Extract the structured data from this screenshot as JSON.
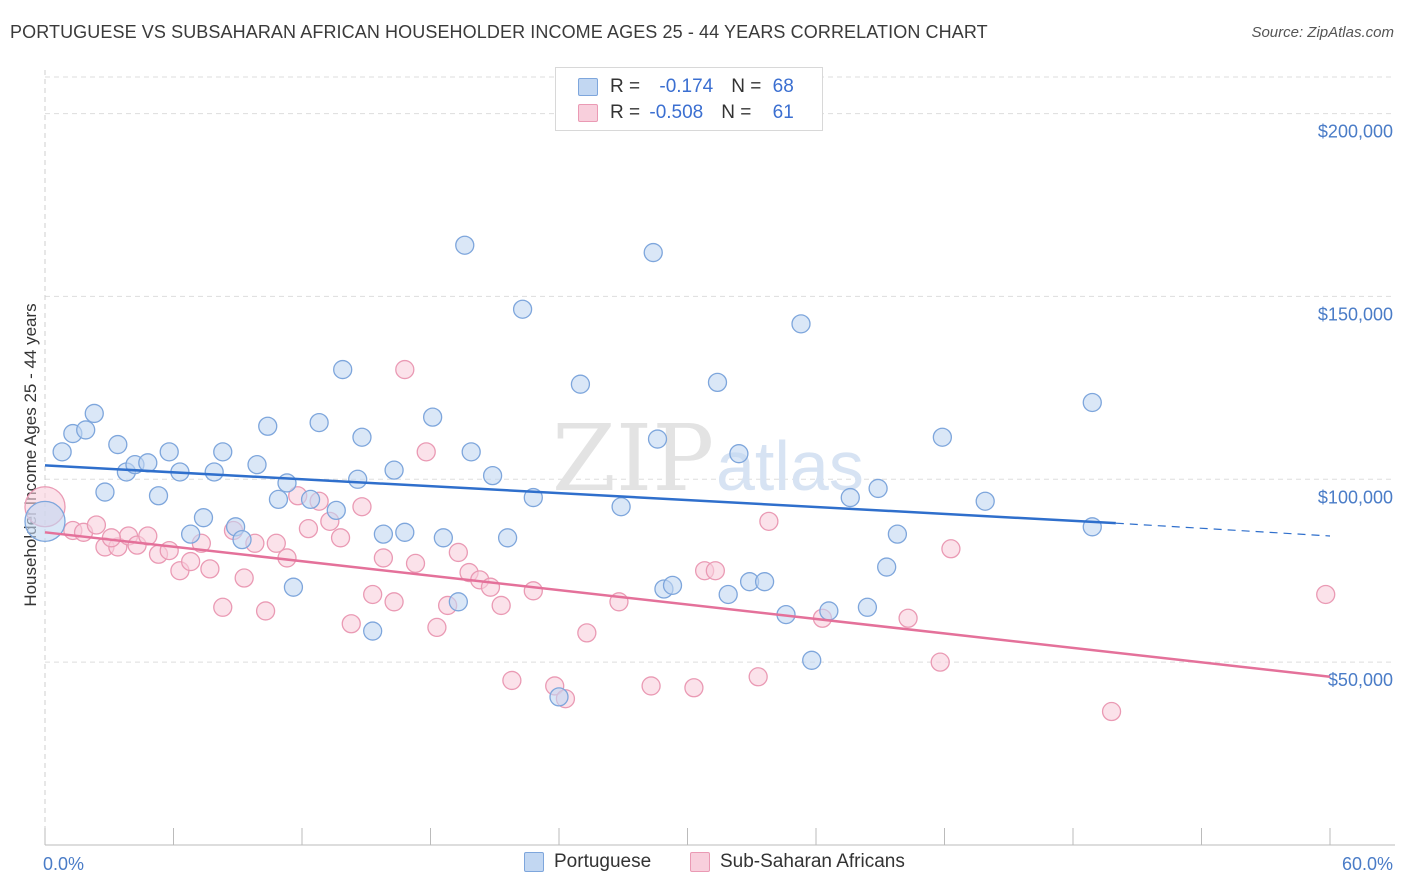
{
  "header": {
    "title": "PORTUGUESE VS SUBSAHARAN AFRICAN HOUSEHOLDER INCOME AGES 25 - 44 YEARS CORRELATION CHART",
    "source": "Source: ZipAtlas.com"
  },
  "watermark": {
    "zip": "ZIP",
    "atlas": "atlas"
  },
  "legend": {
    "rows": [
      {
        "r_label": "R = ",
        "r_value": "-0.174",
        "n_label": "N = ",
        "n_value": "68",
        "color": "#aac7ee"
      },
      {
        "r_label": "R = ",
        "r_value": "-0.508",
        "n_label": "N = ",
        "n_value": "61",
        "color": "#f5b8cb"
      }
    ]
  },
  "bottom_legend": {
    "portuguese": "Portuguese",
    "subsaharan": "Sub-Saharan Africans"
  },
  "colors": {
    "blue_fill": "#c2d7f2",
    "blue_stroke": "#7ea6dc",
    "blue_line": "#2f6fcc",
    "pink_fill": "#f8cfdc",
    "pink_stroke": "#ea9ab4",
    "pink_line": "#e4719a",
    "tick_text": "#4a7cc7",
    "grid": "#dddddd"
  },
  "chart_data": {
    "type": "scatter",
    "title": "PORTUGUESE VS SUBSAHARAN AFRICAN HOUSEHOLDER INCOME AGES 25 - 44 YEARS CORRELATION CHART",
    "xlabel": "",
    "ylabel": "Householder Income Ages 25 - 44 years",
    "xlim": [
      0,
      60
    ],
    "ylim": [
      0,
      210000
    ],
    "x_tick_labels": [
      "0.0%",
      "60.0%"
    ],
    "y_ticks": [
      50000,
      100000,
      150000,
      200000
    ],
    "y_tick_labels": [
      "$50,000",
      "$100,000",
      "$150,000",
      "$200,000"
    ],
    "grid": true,
    "series": [
      {
        "name": "Portuguese",
        "r": -0.174,
        "n": 68,
        "trend": {
          "x": [
            0,
            50
          ],
          "y": [
            103800,
            88000
          ],
          "dashed_to": [
            60,
            84500
          ]
        },
        "points": [
          [
            0.0,
            88500,
            "large"
          ],
          [
            0.8,
            107500
          ],
          [
            1.3,
            112500
          ],
          [
            1.9,
            113500
          ],
          [
            2.3,
            118000
          ],
          [
            2.8,
            96500
          ],
          [
            3.4,
            109500
          ],
          [
            3.8,
            102000
          ],
          [
            4.2,
            104000
          ],
          [
            4.8,
            104500
          ],
          [
            5.3,
            95500
          ],
          [
            5.8,
            107500
          ],
          [
            6.3,
            102000
          ],
          [
            6.8,
            85000
          ],
          [
            7.4,
            89500
          ],
          [
            7.9,
            102000
          ],
          [
            8.3,
            107500
          ],
          [
            8.9,
            87000
          ],
          [
            9.2,
            83500
          ],
          [
            9.9,
            104000
          ],
          [
            10.4,
            114500
          ],
          [
            10.9,
            94500
          ],
          [
            11.3,
            99000
          ],
          [
            11.6,
            70500
          ],
          [
            12.4,
            94500
          ],
          [
            12.8,
            115500
          ],
          [
            13.6,
            91500
          ],
          [
            13.9,
            130000
          ],
          [
            14.6,
            100000
          ],
          [
            14.8,
            111500
          ],
          [
            15.3,
            58500
          ],
          [
            15.8,
            85000
          ],
          [
            16.3,
            102500
          ],
          [
            16.8,
            85500
          ],
          [
            18.1,
            117000
          ],
          [
            18.6,
            84000
          ],
          [
            19.3,
            66500
          ],
          [
            19.6,
            164000
          ],
          [
            19.9,
            107500
          ],
          [
            20.9,
            101000
          ],
          [
            21.6,
            84000
          ],
          [
            22.3,
            146500
          ],
          [
            22.8,
            95000
          ],
          [
            24.0,
            40500
          ],
          [
            25.0,
            126000
          ],
          [
            26.9,
            92500
          ],
          [
            28.4,
            162000
          ],
          [
            28.6,
            111000
          ],
          [
            28.9,
            70000
          ],
          [
            29.3,
            71000
          ],
          [
            31.4,
            126500
          ],
          [
            31.9,
            68500
          ],
          [
            32.4,
            107000
          ],
          [
            32.9,
            72000
          ],
          [
            33.6,
            72000
          ],
          [
            34.6,
            63000
          ],
          [
            35.3,
            142500
          ],
          [
            35.8,
            50500
          ],
          [
            36.6,
            64000
          ],
          [
            37.6,
            95000
          ],
          [
            38.4,
            65000
          ],
          [
            38.9,
            97500
          ],
          [
            39.3,
            76000
          ],
          [
            39.8,
            85000
          ],
          [
            41.9,
            111500
          ],
          [
            43.9,
            94000
          ],
          [
            48.9,
            121000
          ],
          [
            48.9,
            87000
          ]
        ]
      },
      {
        "name": "Sub-Saharan Africans",
        "r": -0.508,
        "n": 61,
        "trend": {
          "x": [
            0,
            60
          ],
          "y": [
            85500,
            46000
          ]
        },
        "points": [
          [
            0.0,
            92500,
            "large"
          ],
          [
            1.3,
            86000
          ],
          [
            1.8,
            85500
          ],
          [
            2.4,
            87500
          ],
          [
            2.8,
            81500
          ],
          [
            3.4,
            81500
          ],
          [
            3.9,
            84500
          ],
          [
            4.3,
            82000
          ],
          [
            4.8,
            84500
          ],
          [
            5.3,
            79500
          ],
          [
            5.8,
            80500
          ],
          [
            6.3,
            75000
          ],
          [
            6.8,
            77500
          ],
          [
            7.3,
            82500
          ],
          [
            7.7,
            75500
          ],
          [
            8.3,
            65000
          ],
          [
            8.8,
            86000
          ],
          [
            9.3,
            73000
          ],
          [
            9.8,
            82500
          ],
          [
            10.3,
            64000
          ],
          [
            10.8,
            82500
          ],
          [
            11.3,
            78500
          ],
          [
            11.8,
            95500
          ],
          [
            12.3,
            86500
          ],
          [
            12.8,
            94000
          ],
          [
            13.3,
            88500
          ],
          [
            13.8,
            84000
          ],
          [
            14.3,
            60500
          ],
          [
            14.8,
            92500
          ],
          [
            15.3,
            68500
          ],
          [
            15.8,
            78500
          ],
          [
            16.3,
            66500
          ],
          [
            16.8,
            130000
          ],
          [
            17.3,
            77000
          ],
          [
            17.8,
            107500
          ],
          [
            18.3,
            59500
          ],
          [
            18.8,
            65500
          ],
          [
            19.3,
            80000
          ],
          [
            19.8,
            74500
          ],
          [
            20.3,
            72500
          ],
          [
            20.8,
            70500
          ],
          [
            21.3,
            65500
          ],
          [
            21.8,
            45000
          ],
          [
            22.8,
            69500
          ],
          [
            23.8,
            43500
          ],
          [
            24.3,
            40000
          ],
          [
            25.3,
            58000
          ],
          [
            26.8,
            66500
          ],
          [
            28.3,
            43500
          ],
          [
            30.3,
            43000
          ],
          [
            30.8,
            75000
          ],
          [
            31.3,
            75000
          ],
          [
            33.3,
            46000
          ],
          [
            33.8,
            88500
          ],
          [
            36.3,
            62000
          ],
          [
            40.3,
            62000
          ],
          [
            41.8,
            50000
          ],
          [
            42.3,
            81000
          ],
          [
            49.8,
            36500
          ],
          [
            59.8,
            68500
          ],
          [
            3.1,
            84000
          ]
        ]
      }
    ]
  }
}
